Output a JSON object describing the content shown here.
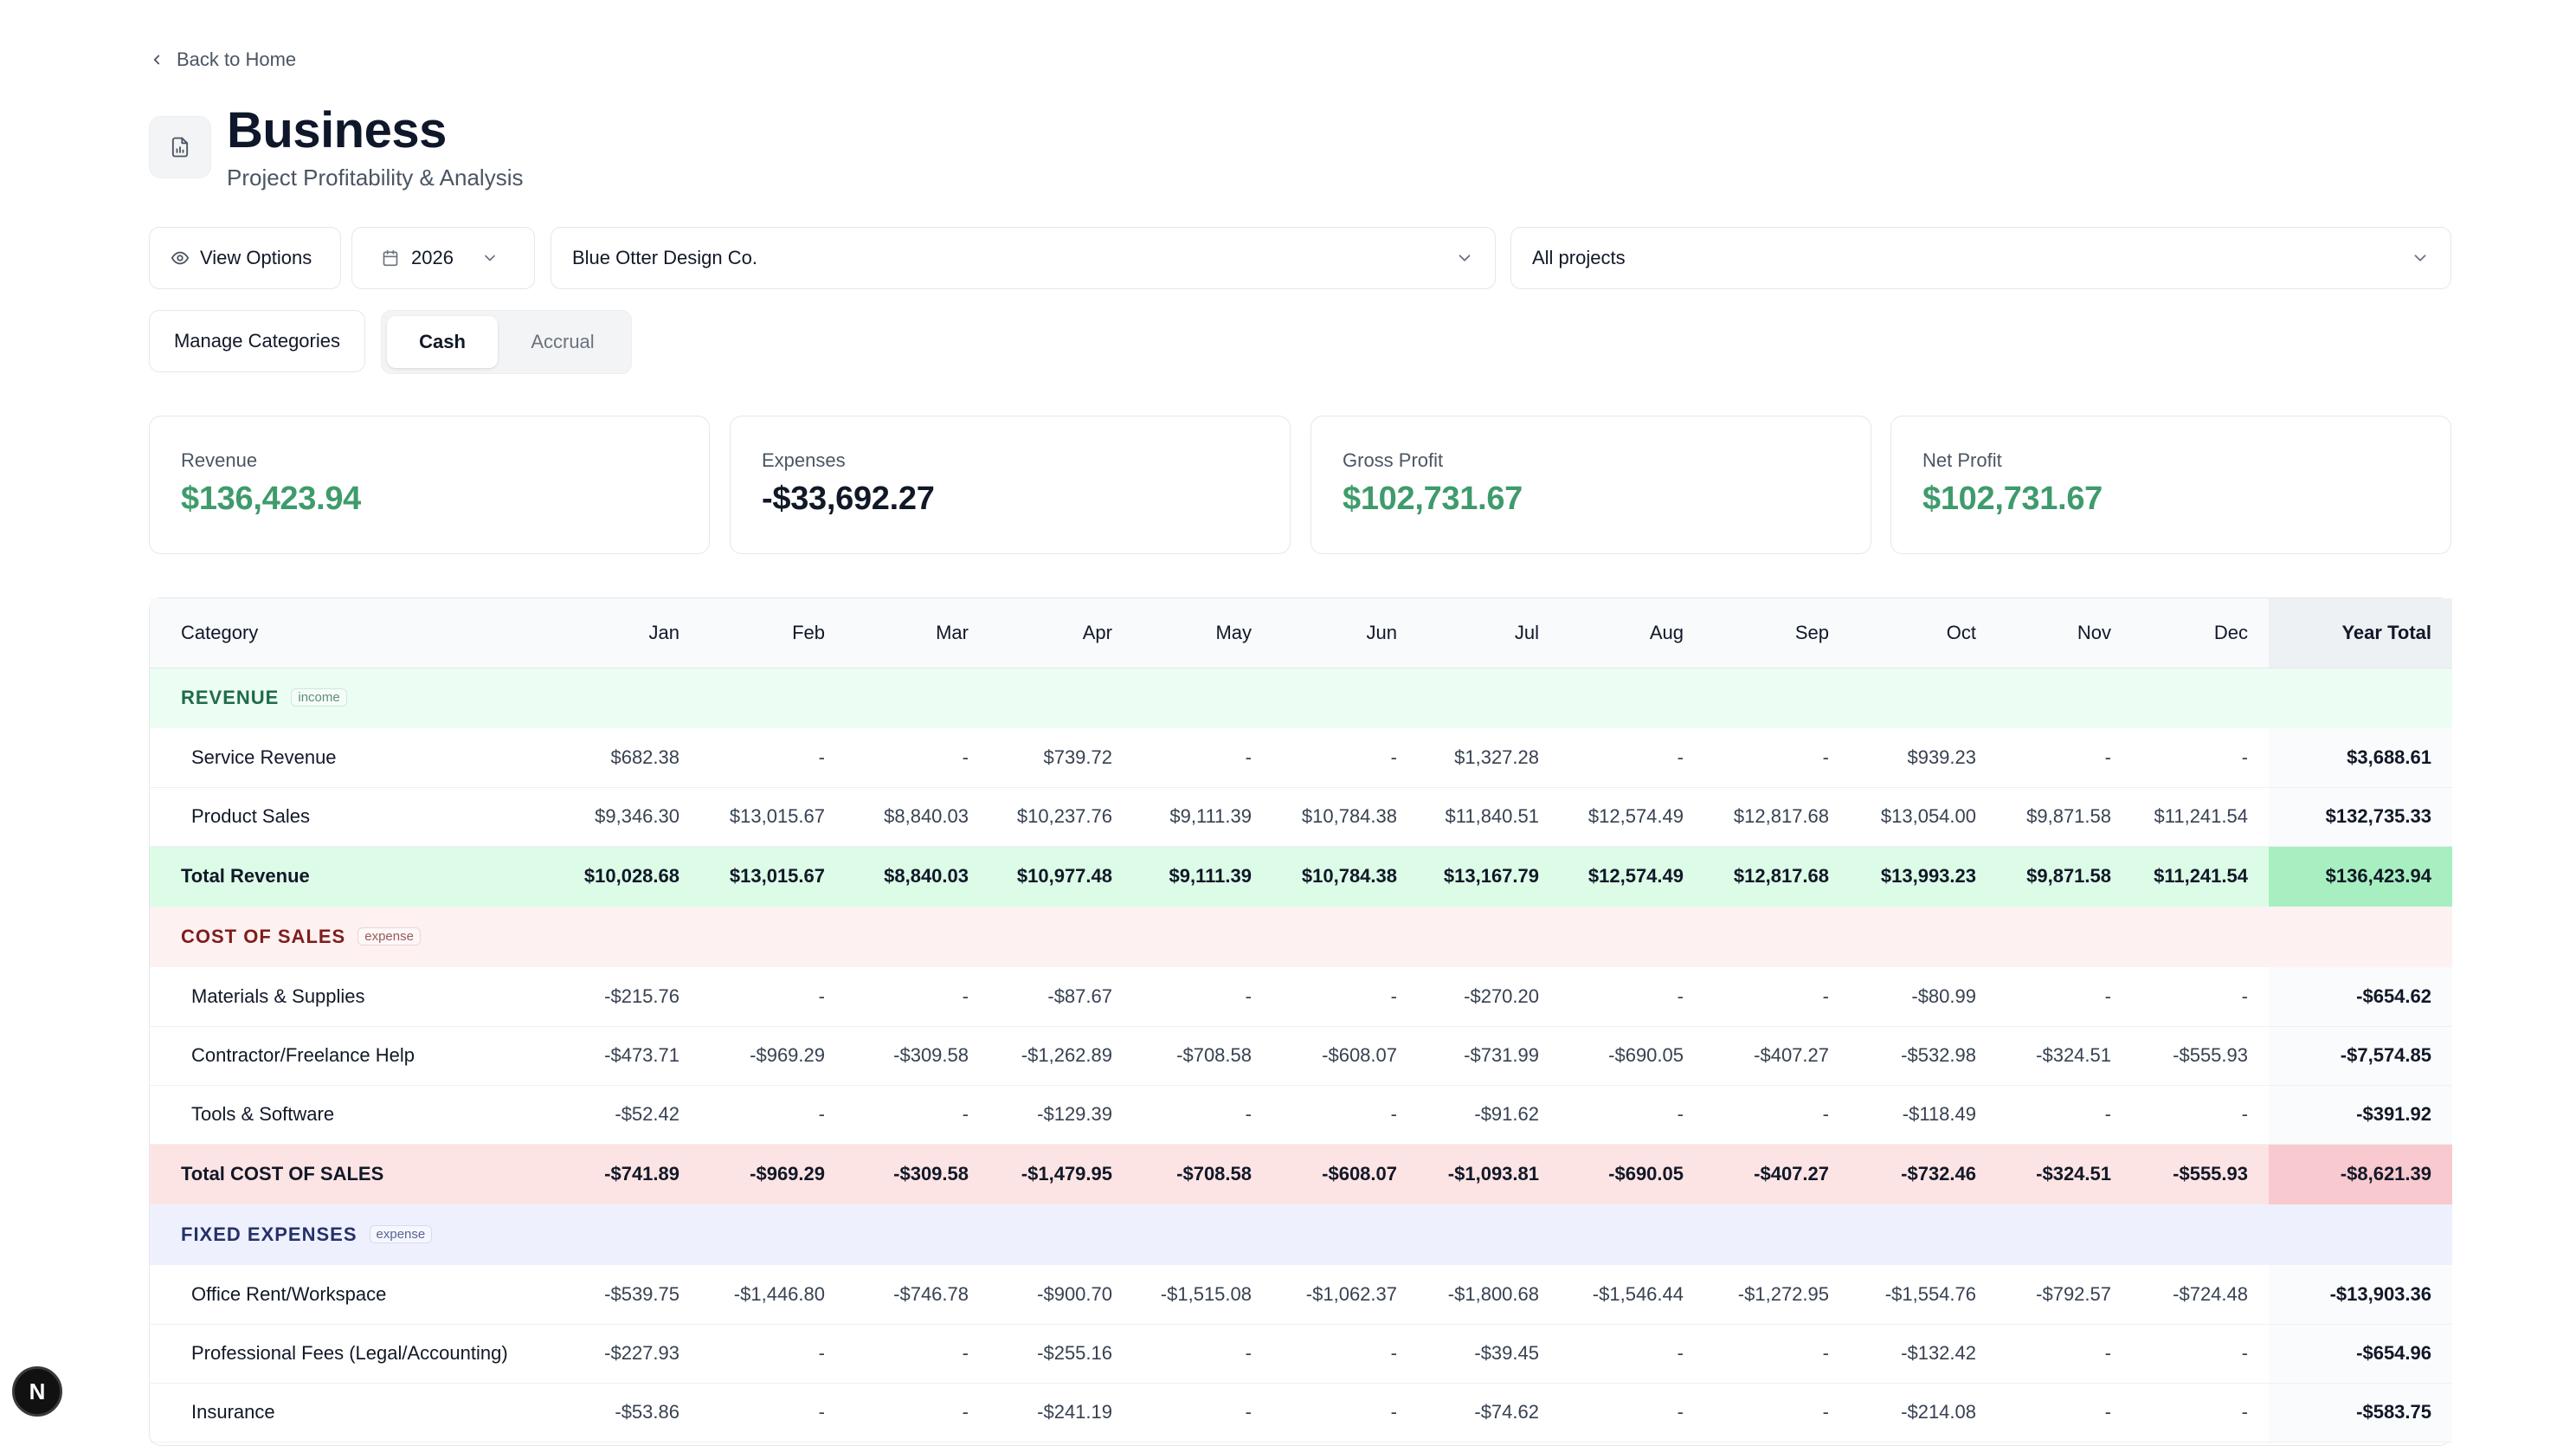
{
  "nav": {
    "back_label": "Back to Home"
  },
  "header": {
    "title": "Business",
    "subtitle": "Project Profitability & Analysis",
    "icon": "report-icon"
  },
  "controls": {
    "view_options_label": "View Options",
    "year": "2026",
    "client": "Blue Otter Design Co.",
    "project": "All projects",
    "manage_categories_label": "Manage Categories",
    "basis_options": [
      "Cash",
      "Accrual"
    ],
    "basis_selected": "Cash"
  },
  "summary": [
    {
      "label": "Revenue",
      "value": "$136,423.94",
      "color": "#3f9b6c"
    },
    {
      "label": "Expenses",
      "value": "-$33,692.27",
      "color": "#111827"
    },
    {
      "label": "Gross Profit",
      "value": "$102,731.67",
      "color": "#3f9b6c"
    },
    {
      "label": "Net Profit",
      "value": "$102,731.67",
      "color": "#3f9b6c"
    }
  ],
  "table": {
    "headers": [
      "Category",
      "Jan",
      "Feb",
      "Mar",
      "Apr",
      "May",
      "Jun",
      "Jul",
      "Aug",
      "Sep",
      "Oct",
      "Nov",
      "Dec",
      "Year Total"
    ],
    "sections": [
      {
        "name": "REVENUE",
        "tag": "income",
        "kind": "rev",
        "rows": [
          {
            "category": "Service Revenue",
            "values": [
              "$682.38",
              "-",
              "-",
              "$739.72",
              "-",
              "-",
              "$1,327.28",
              "-",
              "-",
              "$939.23",
              "-",
              "-"
            ],
            "total": "$3,688.61"
          },
          {
            "category": "Product Sales",
            "values": [
              "$9,346.30",
              "$13,015.67",
              "$8,840.03",
              "$10,237.76",
              "$9,111.39",
              "$10,784.38",
              "$11,840.51",
              "$12,574.49",
              "$12,817.68",
              "$13,054.00",
              "$9,871.58",
              "$11,241.54"
            ],
            "total": "$132,735.33"
          }
        ],
        "total_row": {
          "category": "Total Revenue",
          "values": [
            "$10,028.68",
            "$13,015.67",
            "$8,840.03",
            "$10,977.48",
            "$9,111.39",
            "$10,784.38",
            "$13,167.79",
            "$12,574.49",
            "$12,817.68",
            "$13,993.23",
            "$9,871.58",
            "$11,241.54"
          ],
          "total": "$136,423.94"
        }
      },
      {
        "name": "COST OF SALES",
        "tag": "expense",
        "kind": "cos",
        "rows": [
          {
            "category": "Materials & Supplies",
            "values": [
              "-$215.76",
              "-",
              "-",
              "-$87.67",
              "-",
              "-",
              "-$270.20",
              "-",
              "-",
              "-$80.99",
              "-",
              "-"
            ],
            "total": "-$654.62"
          },
          {
            "category": "Contractor/Freelance Help",
            "values": [
              "-$473.71",
              "-$969.29",
              "-$309.58",
              "-$1,262.89",
              "-$708.58",
              "-$608.07",
              "-$731.99",
              "-$690.05",
              "-$407.27",
              "-$532.98",
              "-$324.51",
              "-$555.93"
            ],
            "total": "-$7,574.85"
          },
          {
            "category": "Tools & Software",
            "values": [
              "-$52.42",
              "-",
              "-",
              "-$129.39",
              "-",
              "-",
              "-$91.62",
              "-",
              "-",
              "-$118.49",
              "-",
              "-"
            ],
            "total": "-$391.92"
          }
        ],
        "total_row": {
          "category": "Total COST OF SALES",
          "values": [
            "-$741.89",
            "-$969.29",
            "-$309.58",
            "-$1,479.95",
            "-$708.58",
            "-$608.07",
            "-$1,093.81",
            "-$690.05",
            "-$407.27",
            "-$732.46",
            "-$324.51",
            "-$555.93"
          ],
          "total": "-$8,621.39"
        }
      },
      {
        "name": "FIXED EXPENSES",
        "tag": "expense",
        "kind": "fix",
        "rows": [
          {
            "category": "Office Rent/Workspace",
            "values": [
              "-$539.75",
              "-$1,446.80",
              "-$746.78",
              "-$900.70",
              "-$1,515.08",
              "-$1,062.37",
              "-$1,800.68",
              "-$1,546.44",
              "-$1,272.95",
              "-$1,554.76",
              "-$792.57",
              "-$724.48"
            ],
            "total": "-$13,903.36"
          },
          {
            "category": "Professional Fees (Legal/Accounting)",
            "values": [
              "-$227.93",
              "-",
              "-",
              "-$255.16",
              "-",
              "-",
              "-$39.45",
              "-",
              "-",
              "-$132.42",
              "-",
              "-"
            ],
            "total": "-$654.96"
          },
          {
            "category": "Insurance",
            "values": [
              "-$53.86",
              "-",
              "-",
              "-$241.19",
              "-",
              "-",
              "-$74.62",
              "-",
              "-",
              "-$214.08",
              "-",
              "-"
            ],
            "total": "-$583.75"
          }
        ]
      }
    ]
  },
  "floating_badge": "N"
}
